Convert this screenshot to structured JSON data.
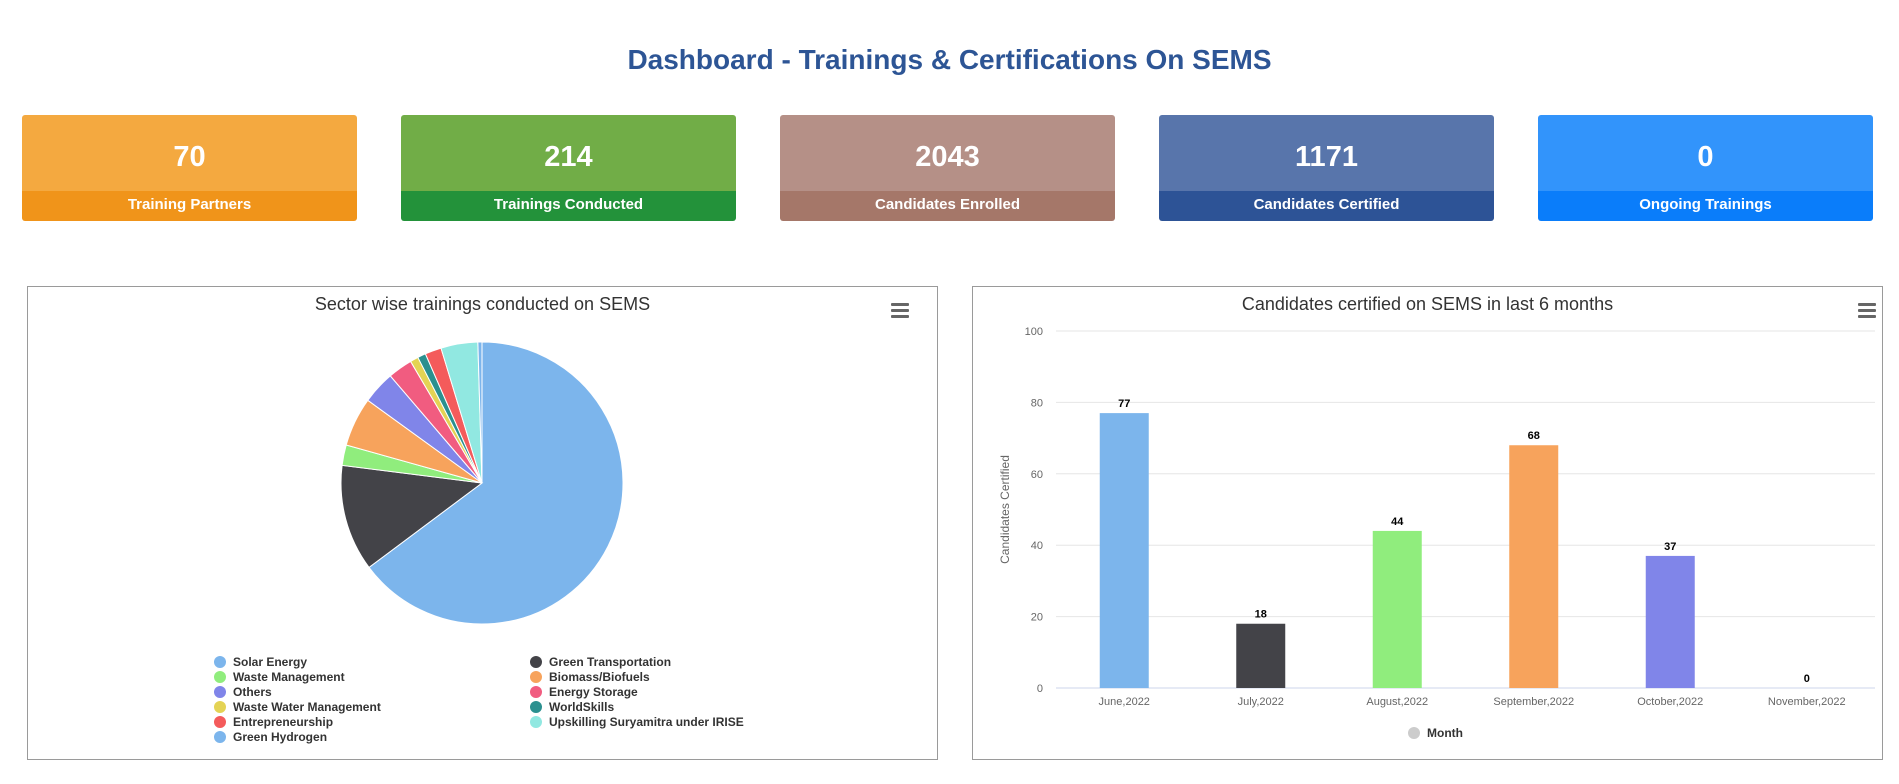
{
  "header": {
    "title": "Dashboard - Trainings & Certifications On SEMS"
  },
  "cards": [
    {
      "value": "70",
      "label": "Training Partners",
      "color_top": "#f4a940",
      "color_bottom": "#f0941a"
    },
    {
      "value": "214",
      "label": "Trainings Conducted",
      "color_top": "#71ad47",
      "color_bottom": "#23923a"
    },
    {
      "value": "2043",
      "label": "Candidates Enrolled",
      "color_top": "#b59087",
      "color_bottom": "#a57769"
    },
    {
      "value": "1171",
      "label": "Candidates Certified",
      "color_top": "#5875ab",
      "color_bottom": "#2d5396"
    },
    {
      "value": "0",
      "label": "Ongoing Trainings",
      "color_top": "#3294fb",
      "color_bottom": "#0a7dfa"
    }
  ],
  "chart_data": [
    {
      "type": "pie",
      "title": "Sector wise trainings conducted on SEMS",
      "legend_position": "bottom",
      "slices": [
        {
          "name": "Solar Energy",
          "value": 138,
          "color": "#7cb5ec"
        },
        {
          "name": "Green Transportation",
          "value": 26,
          "color": "#434348"
        },
        {
          "name": "Waste Management",
          "value": 5,
          "color": "#90ed7d"
        },
        {
          "name": "Biomass/Biofuels",
          "value": 12,
          "color": "#f7a35c"
        },
        {
          "name": "Others",
          "value": 8,
          "color": "#8085e9"
        },
        {
          "name": "Energy Storage",
          "value": 6,
          "color": "#f15c80"
        },
        {
          "name": "Waste Water Management",
          "value": 2,
          "color": "#e4d354"
        },
        {
          "name": "WorldSkills",
          "value": 2,
          "color": "#2b908f"
        },
        {
          "name": "Entrepreneurship",
          "value": 4,
          "color": "#f45b5b"
        },
        {
          "name": "Upskilling Suryamitra under IRISE",
          "value": 9,
          "color": "#91e8e1"
        },
        {
          "name": "Green Hydrogen",
          "value": 1,
          "color": "#7cb5ec"
        }
      ]
    },
    {
      "type": "bar",
      "title": "Candidates certified on SEMS in last 6 months",
      "ylabel": "Candidates Certified",
      "legend_label": "Month",
      "ylim": [
        0,
        100
      ],
      "yticks": [
        0,
        20,
        40,
        60,
        80,
        100
      ],
      "categories": [
        "June,2022",
        "July,2022",
        "August,2022",
        "September,2022",
        "October,2022",
        "November,2022"
      ],
      "values": [
        77,
        18,
        44,
        68,
        37,
        0
      ],
      "colors": [
        "#7cb5ec",
        "#434348",
        "#90ed7d",
        "#f7a35c",
        "#8085e9",
        "#f15c80"
      ],
      "grid": true
    }
  ]
}
